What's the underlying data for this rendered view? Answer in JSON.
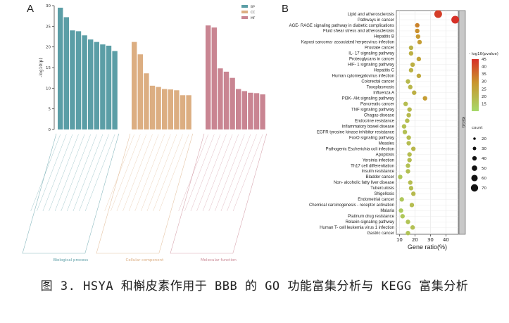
{
  "caption": "图 3. HSYA 和槲皮素作用于 BBB 的 GO 功能富集分析与 KEGG 富集分析",
  "chart_data": [
    {
      "panel": "A",
      "type": "bar",
      "ylabel": "-log10(p)",
      "ylim": [
        0,
        30
      ],
      "yticks": [
        0,
        5,
        10,
        15,
        20,
        25,
        30
      ],
      "legend": [
        {
          "name": "BP",
          "color": "#5b9ea6"
        },
        {
          "name": "CC",
          "color": "#dcae82"
        },
        {
          "name": "MF",
          "color": "#c98592"
        }
      ],
      "groups": [
        {
          "name": "Biological process",
          "key": "BP",
          "color": "#5b9ea6",
          "values": [
            29.5,
            27.2,
            24,
            23.8,
            22.8,
            21.8,
            21.2,
            20.6,
            20.3,
            19
          ]
        },
        {
          "name": "Cellular component",
          "key": "CC",
          "color": "#dcae82",
          "values": [
            21.2,
            18.2,
            13.6,
            10.6,
            10.3,
            9.8,
            9.7,
            9.5,
            8.3,
            8.3
          ]
        },
        {
          "name": "Molecular function",
          "key": "MF",
          "color": "#c98592",
          "values": [
            25.2,
            24.7,
            14.8,
            14,
            12.5,
            9.8,
            9.3,
            8.9,
            8.8,
            8.5
          ]
        }
      ]
    },
    {
      "panel": "B",
      "type": "scatter",
      "xlabel": "Gene ratio(%)",
      "xlim": [
        8,
        48
      ],
      "xticks": [
        10,
        20,
        30,
        40
      ],
      "facet_label": "KEGG",
      "color_legend_title": "- log10(pvalue)",
      "color_scale": {
        "min": 10,
        "max": 45,
        "ticks": [
          45,
          40,
          35,
          30,
          25,
          20,
          15
        ]
      },
      "size_legend_title": "count",
      "size_legend": [
        20,
        30,
        40,
        50,
        60,
        70
      ],
      "pathways": [
        {
          "name": "Lipid and atherosclerosis",
          "ratio": 35,
          "logp": 43
        },
        {
          "name": "Pathways in cancer",
          "ratio": 46,
          "logp": 45
        },
        {
          "name": "AGE- RAGE signaling pathway in diabetic complications",
          "ratio": 21.5,
          "logp": 32
        },
        {
          "name": "Fluid shear stress and atherosclerosis",
          "ratio": 21.5,
          "logp": 30
        },
        {
          "name": "Hepatitis B",
          "ratio": 22,
          "logp": 28
        },
        {
          "name": "Kaposi sarcoma- associated herpesvirus infection",
          "ratio": 23,
          "logp": 27
        },
        {
          "name": "Prostate cancer",
          "ratio": 17.5,
          "logp": 21
        },
        {
          "name": "IL- 17 signaling pathway",
          "ratio": 17.5,
          "logp": 22
        },
        {
          "name": "Proteoglycans in cancer",
          "ratio": 22.5,
          "logp": 25
        },
        {
          "name": "HIF- 1 signaling pathway",
          "ratio": 18.5,
          "logp": 22
        },
        {
          "name": "Hepatitis C",
          "ratio": 17.5,
          "logp": 21
        },
        {
          "name": "Human cytomegalovirus infection",
          "ratio": 22.5,
          "logp": 24
        },
        {
          "name": "Colorectal cancer",
          "ratio": 15.5,
          "logp": 19
        },
        {
          "name": "Toxoplasmosis",
          "ratio": 17,
          "logp": 20
        },
        {
          "name": "Influenza A",
          "ratio": 19.5,
          "logp": 22
        },
        {
          "name": "PI3K- Akt signaling pathway",
          "ratio": 26.5,
          "logp": 27
        },
        {
          "name": "Pancreatic cancer",
          "ratio": 14,
          "logp": 18
        },
        {
          "name": "TNF signaling pathway",
          "ratio": 16.5,
          "logp": 19
        },
        {
          "name": "Chagas disease",
          "ratio": 16,
          "logp": 19
        },
        {
          "name": "Endocrine resistance",
          "ratio": 15,
          "logp": 18
        },
        {
          "name": "Inflammatory bowel disease",
          "ratio": 13,
          "logp": 17
        },
        {
          "name": "EGFR tyrosine kinase inhibitor resistance",
          "ratio": 13.5,
          "logp": 17
        },
        {
          "name": "FoxO signaling pathway",
          "ratio": 16,
          "logp": 18
        },
        {
          "name": "Measles",
          "ratio": 16,
          "logp": 18
        },
        {
          "name": "Pathogenic Escherichia coli infection",
          "ratio": 19,
          "logp": 20
        },
        {
          "name": "Apoptosis",
          "ratio": 16.5,
          "logp": 18
        },
        {
          "name": "Yersinia infection",
          "ratio": 16.5,
          "logp": 18
        },
        {
          "name": "Th17 cell differentiation",
          "ratio": 15.5,
          "logp": 17
        },
        {
          "name": "Insulin resistance",
          "ratio": 15.5,
          "logp": 17
        },
        {
          "name": "Bladder cancer",
          "ratio": 10.5,
          "logp": 15
        },
        {
          "name": "Non- alcoholic fatty liver disease",
          "ratio": 17,
          "logp": 18
        },
        {
          "name": "Tuberculosis",
          "ratio": 17.5,
          "logp": 18
        },
        {
          "name": "Shigellosis",
          "ratio": 19,
          "logp": 19
        },
        {
          "name": "Endometrial cancer",
          "ratio": 11.5,
          "logp": 15
        },
        {
          "name": "Chemical carcinogenesis - receptor activation",
          "ratio": 18,
          "logp": 18
        },
        {
          "name": "Malaria",
          "ratio": 11,
          "logp": 14
        },
        {
          "name": "Platinum drug resistance",
          "ratio": 12,
          "logp": 15
        },
        {
          "name": "Relaxin signaling pathway",
          "ratio": 15.5,
          "logp": 16
        },
        {
          "name": "Human T- cell leukemia virus 1 infection",
          "ratio": 18.5,
          "logp": 17
        },
        {
          "name": "Gastric cancer",
          "ratio": 15.5,
          "logp": 16
        }
      ]
    }
  ],
  "panels": {
    "a_label": "A",
    "b_label": "B"
  }
}
